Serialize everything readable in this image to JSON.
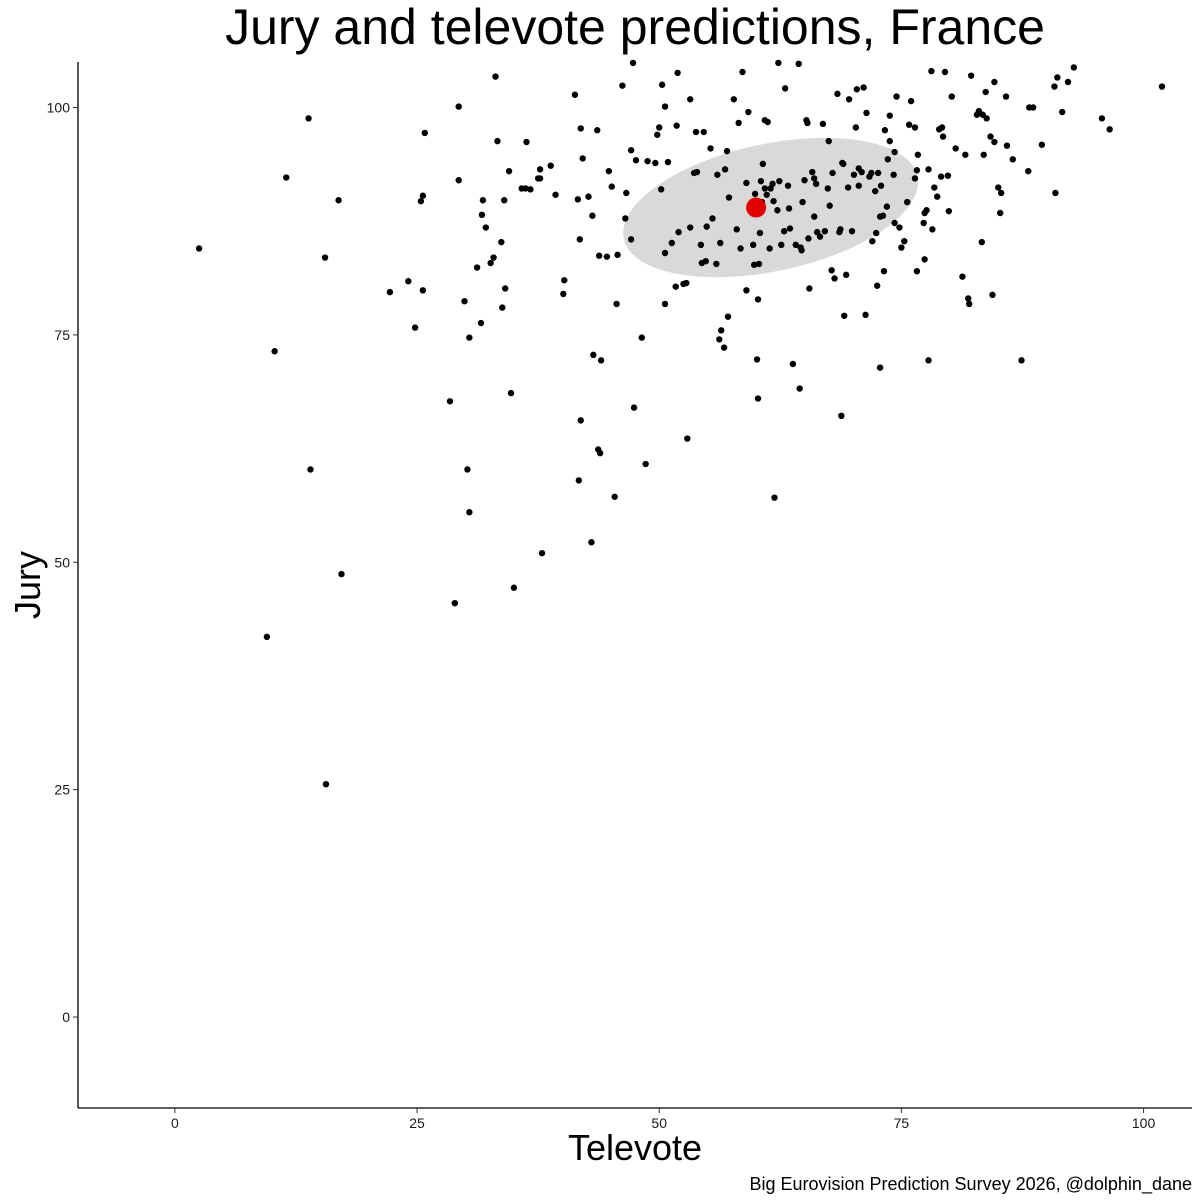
{
  "chart_data": {
    "type": "scatter",
    "title": "Jury and televote predictions, France",
    "xlabel": "Televote",
    "ylabel": "Jury",
    "caption": "Big Eurovision Prediction Survey 2026, @dolphin_dane",
    "xlim": [
      -10,
      105
    ],
    "ylim": [
      -10,
      105
    ],
    "x_ticks": [
      0,
      25,
      50,
      75,
      100
    ],
    "y_ticks": [
      0,
      25,
      50,
      75,
      100
    ],
    "grid": false,
    "legend": "none",
    "colors": {
      "points": "#000000",
      "mean": "#e00000",
      "ellipse": "#d9d9d9"
    },
    "mean_point": {
      "x": 60,
      "y": 89
    },
    "ellipse": {
      "cx": 61.5,
      "cy": 89.0,
      "rx": 15.5,
      "ry": 7.0,
      "rotation_deg": -12
    },
    "points": [
      [
        2.5,
        84.5
      ],
      [
        9.5,
        41.8
      ],
      [
        10.3,
        73.2
      ],
      [
        11.5,
        92.3
      ],
      [
        13.8,
        98.8
      ],
      [
        14,
        60.2
      ],
      [
        15.5,
        83.5
      ],
      [
        15.6,
        25.6
      ],
      [
        16.9,
        89.8
      ],
      [
        17.2,
        48.7
      ],
      [
        22.2,
        79.7
      ],
      [
        24.1,
        80.9
      ],
      [
        24.8,
        75.8
      ],
      [
        25.4,
        89.7
      ],
      [
        25.6,
        90.3
      ],
      [
        25.8,
        97.2
      ],
      [
        25.6,
        79.9
      ],
      [
        28.4,
        67.7
      ],
      [
        28.9,
        45.5
      ],
      [
        29.3,
        92
      ],
      [
        29.3,
        100.1
      ],
      [
        29.9,
        78.7
      ],
      [
        30.2,
        60.2
      ],
      [
        30.4,
        55.5
      ],
      [
        30.4,
        74.7
      ],
      [
        31.2,
        82.4
      ],
      [
        31.6,
        76.3
      ],
      [
        31.7,
        88.2
      ],
      [
        31.8,
        89.8
      ],
      [
        32.1,
        86.8
      ],
      [
        32.6,
        82.9
      ],
      [
        32.9,
        83.5
      ],
      [
        33.1,
        103.4
      ],
      [
        33.3,
        96.3
      ],
      [
        33.7,
        85.2
      ],
      [
        33.8,
        78
      ],
      [
        34,
        89.8
      ],
      [
        34.1,
        80.1
      ],
      [
        34.5,
        93
      ],
      [
        34.7,
        68.6
      ],
      [
        35,
        47.2
      ],
      [
        35.8,
        91.1
      ],
      [
        36.2,
        91.1
      ],
      [
        36.3,
        96.2
      ],
      [
        36.7,
        91
      ],
      [
        37.5,
        92.2
      ],
      [
        37.7,
        92.2
      ],
      [
        37.7,
        93.2
      ],
      [
        37.9,
        51
      ],
      [
        38.8,
        93.6
      ],
      [
        39.3,
        90.4
      ],
      [
        40.1,
        79.5
      ],
      [
        40.2,
        81
      ],
      [
        41.3,
        101.4
      ],
      [
        41.6,
        89.9
      ],
      [
        41.7,
        59
      ],
      [
        41.8,
        85.5
      ],
      [
        41.9,
        97.7
      ],
      [
        41.9,
        65.6
      ],
      [
        42.1,
        94.4
      ],
      [
        42.7,
        90.2
      ],
      [
        43,
        52.2
      ],
      [
        43.1,
        88.1
      ],
      [
        43.2,
        72.8
      ],
      [
        43.6,
        97.5
      ],
      [
        43.7,
        62.4
      ],
      [
        43.8,
        83.7
      ],
      [
        43.9,
        62
      ],
      [
        44,
        72.2
      ],
      [
        44.6,
        83.6
      ],
      [
        44.8,
        93
      ],
      [
        45.1,
        91.3
      ],
      [
        45.4,
        57.2
      ],
      [
        45.6,
        78.4
      ],
      [
        45.7,
        83.8
      ],
      [
        46.2,
        102.4
      ],
      [
        46.5,
        87.8
      ],
      [
        46.6,
        90.6
      ],
      [
        47.1,
        95.3
      ],
      [
        47.1,
        85.5
      ],
      [
        47.3,
        104.9
      ],
      [
        47.4,
        67
      ],
      [
        47.6,
        94.2
      ],
      [
        48.2,
        74.7
      ],
      [
        48.6,
        60.8
      ],
      [
        48.8,
        94.1
      ],
      [
        49.6,
        93.9
      ],
      [
        49.8,
        97
      ],
      [
        50,
        97.8
      ],
      [
        50.2,
        91
      ],
      [
        50.3,
        102.5
      ],
      [
        50.6,
        84
      ],
      [
        50.6,
        78.4
      ],
      [
        50.6,
        100.1
      ],
      [
        50.9,
        94
      ],
      [
        51.3,
        85.1
      ],
      [
        51.7,
        80.3
      ],
      [
        51.8,
        98
      ],
      [
        51.9,
        103.8
      ],
      [
        52,
        86.3
      ],
      [
        52.5,
        80.6
      ],
      [
        52.8,
        80.7
      ],
      [
        52.9,
        63.6
      ],
      [
        53.2,
        86.8
      ],
      [
        53.2,
        100.9
      ],
      [
        53.6,
        92.8
      ],
      [
        53.8,
        97.3
      ],
      [
        53.9,
        92.9
      ],
      [
        54.3,
        84.9
      ],
      [
        54.4,
        82.9
      ],
      [
        54.6,
        97.3
      ],
      [
        54.8,
        83.1
      ],
      [
        54.9,
        86.9
      ],
      [
        55.3,
        95.5
      ],
      [
        55.5,
        87.8
      ],
      [
        55.9,
        82.8
      ],
      [
        56,
        92.6
      ],
      [
        56.2,
        74.5
      ],
      [
        56.3,
        85.1
      ],
      [
        56.4,
        75.5
      ],
      [
        56.7,
        73.6
      ],
      [
        56.8,
        93.2
      ],
      [
        57,
        95.2
      ],
      [
        57.1,
        77
      ],
      [
        57.2,
        90.1
      ],
      [
        57.7,
        100.9
      ],
      [
        58,
        86.6
      ],
      [
        58.2,
        98.3
      ],
      [
        58.4,
        84.5
      ],
      [
        58.6,
        103.9
      ],
      [
        59,
        91.7
      ],
      [
        59,
        79.9
      ],
      [
        59.2,
        99.5
      ],
      [
        59.7,
        84.9
      ],
      [
        59.8,
        82.7
      ],
      [
        59.9,
        90.5
      ],
      [
        60.1,
        72.3
      ],
      [
        60.2,
        78.9
      ],
      [
        60.2,
        68
      ],
      [
        60.3,
        82.8
      ],
      [
        60.4,
        86.2
      ],
      [
        60.5,
        91.9
      ],
      [
        60.6,
        89.6
      ],
      [
        60.7,
        93.8
      ],
      [
        60.9,
        91.1
      ],
      [
        60.9,
        98.6
      ],
      [
        61.1,
        90.4
      ],
      [
        61.2,
        98.4
      ],
      [
        61.4,
        84.5
      ],
      [
        61.5,
        91.1
      ],
      [
        61.7,
        91.6
      ],
      [
        61.8,
        89.7
      ],
      [
        61.9,
        57.1
      ],
      [
        62.2,
        88.7
      ],
      [
        62.3,
        104.9
      ],
      [
        62.4,
        91.9
      ],
      [
        62.6,
        84.9
      ],
      [
        62.9,
        86.4
      ],
      [
        63,
        102.1
      ],
      [
        63.3,
        91.4
      ],
      [
        63.4,
        88.9
      ],
      [
        63.5,
        86.7
      ],
      [
        63.8,
        71.8
      ],
      [
        64.1,
        84.9
      ],
      [
        64.4,
        104.8
      ],
      [
        64.5,
        69.1
      ],
      [
        64.6,
        84.6
      ],
      [
        64.7,
        84.3
      ],
      [
        64.8,
        89.6
      ],
      [
        65,
        92
      ],
      [
        65.2,
        98.6
      ],
      [
        65.3,
        98.3
      ],
      [
        65.4,
        85.6
      ],
      [
        65.5,
        80.1
      ],
      [
        65.8,
        92.9
      ],
      [
        66,
        92.2
      ],
      [
        66,
        88
      ],
      [
        66.2,
        91.6
      ],
      [
        66.3,
        86.3
      ],
      [
        66.6,
        85.8
      ],
      [
        66.9,
        98.2
      ],
      [
        67.1,
        86.4
      ],
      [
        67.4,
        91.1
      ],
      [
        67.5,
        96.3
      ],
      [
        67.6,
        89.2
      ],
      [
        67.8,
        82.1
      ],
      [
        67.9,
        92.8
      ],
      [
        68.1,
        81.2
      ],
      [
        68.4,
        101.5
      ],
      [
        68.6,
        86.3
      ],
      [
        68.7,
        86.6
      ],
      [
        68.8,
        66.1
      ],
      [
        68.9,
        93.9
      ],
      [
        69,
        93.8
      ],
      [
        69.1,
        77.1
      ],
      [
        69.3,
        81.6
      ],
      [
        69.5,
        91.2
      ],
      [
        69.6,
        100.9
      ],
      [
        69.9,
        86.4
      ],
      [
        70.1,
        92.6
      ],
      [
        70.3,
        97.8
      ],
      [
        70.4,
        102
      ],
      [
        70.6,
        91.4
      ],
      [
        70.6,
        93.3
      ],
      [
        70.9,
        92.9
      ],
      [
        71.1,
        102.2
      ],
      [
        71.3,
        77.2
      ],
      [
        71.4,
        99.4
      ],
      [
        71.7,
        92.4
      ],
      [
        71.9,
        92.8
      ],
      [
        72,
        85.3
      ],
      [
        72.3,
        90.8
      ],
      [
        72.4,
        86.2
      ],
      [
        72.5,
        80.4
      ],
      [
        72.6,
        92.8
      ],
      [
        72.8,
        88
      ],
      [
        72.8,
        71.4
      ],
      [
        72.9,
        91.4
      ],
      [
        73.1,
        88.1
      ],
      [
        73.2,
        82
      ],
      [
        73.3,
        97.5
      ],
      [
        73.5,
        89.1
      ],
      [
        73.6,
        94.3
      ],
      [
        73.8,
        96.3
      ],
      [
        73.8,
        99.1
      ],
      [
        74.2,
        92.6
      ],
      [
        74.3,
        95.1
      ],
      [
        74.3,
        87.3
      ],
      [
        74.5,
        101.2
      ],
      [
        74.8,
        86.8
      ],
      [
        75,
        84.6
      ],
      [
        75.3,
        85.3
      ],
      [
        75.6,
        89.6
      ],
      [
        75.8,
        98.1
      ],
      [
        76,
        100.7
      ],
      [
        76.4,
        97.8
      ],
      [
        76.4,
        92.2
      ],
      [
        76.6,
        93.1
      ],
      [
        76.6,
        82
      ],
      [
        76.7,
        94.8
      ],
      [
        77.3,
        87.3
      ],
      [
        77.4,
        88.4
      ],
      [
        77.4,
        83.3
      ],
      [
        77.6,
        88.7
      ],
      [
        77.8,
        72.2
      ],
      [
        77.8,
        93.2
      ],
      [
        78.1,
        104
      ],
      [
        78.2,
        86.6
      ],
      [
        78.4,
        91.2
      ],
      [
        78.7,
        90.2
      ],
      [
        78.9,
        97.6
      ],
      [
        79.1,
        92.4
      ],
      [
        79.2,
        97.8
      ],
      [
        79.3,
        96.8
      ],
      [
        79.5,
        103.9
      ],
      [
        79.8,
        92.5
      ],
      [
        79.9,
        88.6
      ],
      [
        80.2,
        101.2
      ],
      [
        80.6,
        95.5
      ],
      [
        81.3,
        81.4
      ],
      [
        81.6,
        94.8
      ],
      [
        81.9,
        79
      ],
      [
        82,
        78.4
      ],
      [
        82.2,
        103.5
      ],
      [
        82.8,
        99.2
      ],
      [
        83,
        99.6
      ],
      [
        83.3,
        85.2
      ],
      [
        83.4,
        99.2
      ],
      [
        83.5,
        94.8
      ],
      [
        83.7,
        101.7
      ],
      [
        83.8,
        98.8
      ],
      [
        84.2,
        96.8
      ],
      [
        84.4,
        79.4
      ],
      [
        84.6,
        102.8
      ],
      [
        84.6,
        96.2
      ],
      [
        85,
        91.2
      ],
      [
        85.2,
        88.4
      ],
      [
        85.3,
        90.6
      ],
      [
        85.8,
        101.2
      ],
      [
        85.9,
        95.8
      ],
      [
        86.5,
        94.3
      ],
      [
        87.4,
        72.2
      ],
      [
        88.1,
        93
      ],
      [
        88.2,
        100
      ],
      [
        88.6,
        100
      ],
      [
        89.5,
        95.9
      ],
      [
        90.8,
        102.3
      ],
      [
        90.9,
        90.6
      ],
      [
        91.1,
        103.3
      ],
      [
        91.6,
        99.5
      ],
      [
        92.2,
        102.8
      ],
      [
        92.8,
        104.4
      ],
      [
        95.7,
        98.8
      ],
      [
        96.5,
        97.6
      ],
      [
        101.9,
        102.3
      ]
    ]
  }
}
